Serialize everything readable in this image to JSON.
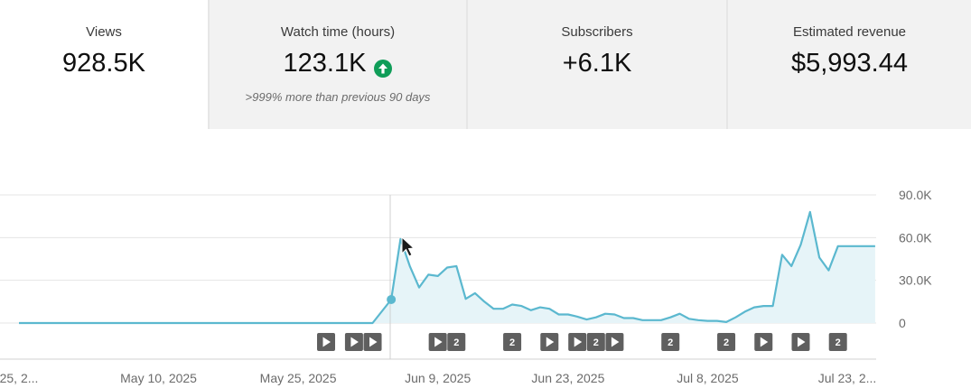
{
  "cards": [
    {
      "label": "Views",
      "value": "928.5K"
    },
    {
      "label": "Watch time (hours)",
      "value": "123.1K",
      "sub": ">999% more than previous 90 days",
      "trend_icon": "arrow-up-circle-icon",
      "trend_color": "#0f9d58"
    },
    {
      "label": "Subscribers",
      "value": "+6.1K"
    },
    {
      "label": "Estimated revenue",
      "value": "$5,993.44"
    }
  ],
  "colors": {
    "line": "#5bb8cf",
    "area": "#e6f4f8",
    "grid": "#e5e5e5",
    "marker": "#5f5f5f"
  },
  "chart_data": {
    "type": "area",
    "title": "",
    "xlabel": "",
    "ylabel": "",
    "ylim": [
      0,
      90000
    ],
    "yticks": [
      {
        "value": 90000,
        "label": "90.0K"
      },
      {
        "value": 60000,
        "label": "60.0K"
      },
      {
        "value": 30000,
        "label": "30.0K"
      },
      {
        "value": 0,
        "label": "0"
      }
    ],
    "xticks": [
      {
        "date": "2025-04-25",
        "label": "25, 2..."
      },
      {
        "date": "2025-05-10",
        "label": "May 10, 2025"
      },
      {
        "date": "2025-05-25",
        "label": "May 25, 2025"
      },
      {
        "date": "2025-06-09",
        "label": "Jun 9, 2025"
      },
      {
        "date": "2025-06-23",
        "label": "Jun 23, 2025"
      },
      {
        "date": "2025-07-08",
        "label": "Jul 8, 2025"
      },
      {
        "date": "2025-07-23",
        "label": "Jul 23, 2..."
      }
    ],
    "series": [
      {
        "x": [
          "2025-04-25",
          "2025-06-02",
          "2025-06-04",
          "2025-06-05",
          "2025-06-06",
          "2025-06-07",
          "2025-06-08",
          "2025-06-09",
          "2025-06-10",
          "2025-06-11",
          "2025-06-12",
          "2025-06-13",
          "2025-06-14",
          "2025-06-15",
          "2025-06-16",
          "2025-06-17",
          "2025-06-18",
          "2025-06-19",
          "2025-06-20",
          "2025-06-21",
          "2025-06-22",
          "2025-06-23",
          "2025-06-24",
          "2025-06-25",
          "2025-06-26",
          "2025-06-27",
          "2025-06-28",
          "2025-06-29",
          "2025-06-30",
          "2025-07-01",
          "2025-07-02",
          "2025-07-03",
          "2025-07-04",
          "2025-07-05",
          "2025-07-06",
          "2025-07-07",
          "2025-07-08",
          "2025-07-09",
          "2025-07-10",
          "2025-07-11",
          "2025-07-12",
          "2025-07-13",
          "2025-07-14",
          "2025-07-15",
          "2025-07-16",
          "2025-07-17",
          "2025-07-18",
          "2025-07-19",
          "2025-07-20",
          "2025-07-21",
          "2025-07-22",
          "2025-07-23",
          "2025-07-24",
          "2025-07-25",
          "2025-07-26"
        ],
        "values": [
          0,
          0,
          16500,
          59000,
          40000,
          25000,
          34000,
          33000,
          39000,
          40000,
          17000,
          21000,
          15000,
          10000,
          10000,
          13000,
          12000,
          9000,
          11000,
          10000,
          6000,
          6000,
          4500,
          2500,
          4000,
          6500,
          6000,
          3500,
          3500,
          2000,
          2000,
          2000,
          4000,
          6500,
          3000,
          2000,
          1500,
          1500,
          700,
          4000,
          8000,
          11000,
          12000,
          12000,
          48000,
          40000,
          55000,
          78000,
          46000,
          37000,
          54000,
          54000,
          54000,
          54000,
          54000
        ]
      }
    ],
    "hover": {
      "date": "2025-06-04",
      "value": 16500
    },
    "markers": [
      {
        "date": "2025-05-28",
        "kind": "play"
      },
      {
        "date": "2025-05-31",
        "kind": "play"
      },
      {
        "date": "2025-06-02",
        "kind": "play"
      },
      {
        "date": "2025-06-09",
        "kind": "play"
      },
      {
        "date": "2025-06-11",
        "kind": "2"
      },
      {
        "date": "2025-06-17",
        "kind": "2"
      },
      {
        "date": "2025-06-21",
        "kind": "play"
      },
      {
        "date": "2025-06-24",
        "kind": "play"
      },
      {
        "date": "2025-06-26",
        "kind": "2"
      },
      {
        "date": "2025-06-28",
        "kind": "play"
      },
      {
        "date": "2025-07-04",
        "kind": "2"
      },
      {
        "date": "2025-07-10",
        "kind": "2"
      },
      {
        "date": "2025-07-14",
        "kind": "play"
      },
      {
        "date": "2025-07-18",
        "kind": "play"
      },
      {
        "date": "2025-07-22",
        "kind": "2"
      }
    ]
  }
}
